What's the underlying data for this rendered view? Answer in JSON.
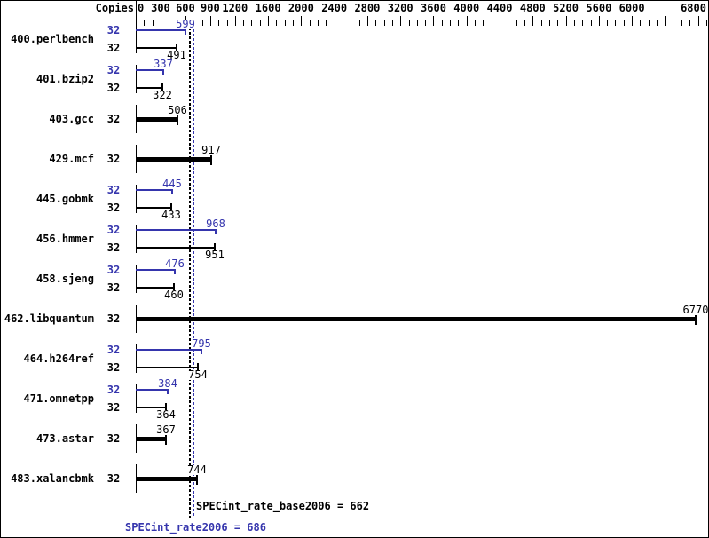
{
  "chart_data": {
    "type": "bar",
    "orientation": "horizontal",
    "copies_header": "Copies",
    "axis": {
      "min": 0,
      "max": 6900,
      "labeled_ticks": [
        0,
        300,
        600,
        900,
        1200,
        1600,
        2000,
        2400,
        2800,
        3200,
        3600,
        4000,
        4400,
        4800,
        5200,
        5600,
        6000,
        6800
      ],
      "unlabeled_major_ticks": [
        6400
      ],
      "minor_tick_step": 100
    },
    "rows": [
      {
        "benchmark": "400.perlbench",
        "bars": [
          {
            "series": "peak",
            "copies": "32",
            "value": 599
          },
          {
            "series": "base",
            "copies": "32",
            "value": 491
          }
        ]
      },
      {
        "benchmark": "401.bzip2",
        "bars": [
          {
            "series": "peak",
            "copies": "32",
            "value": 337
          },
          {
            "series": "base",
            "copies": "32",
            "value": 322
          }
        ]
      },
      {
        "benchmark": "403.gcc",
        "bars": [
          {
            "series": "single",
            "copies": "32",
            "value": 506
          }
        ]
      },
      {
        "benchmark": "429.mcf",
        "bars": [
          {
            "series": "single",
            "copies": "32",
            "value": 917
          }
        ]
      },
      {
        "benchmark": "445.gobmk",
        "bars": [
          {
            "series": "peak",
            "copies": "32",
            "value": 445
          },
          {
            "series": "base",
            "copies": "32",
            "value": 433
          }
        ]
      },
      {
        "benchmark": "456.hmmer",
        "bars": [
          {
            "series": "peak",
            "copies": "32",
            "value": 968
          },
          {
            "series": "base",
            "copies": "32",
            "value": 951
          }
        ]
      },
      {
        "benchmark": "458.sjeng",
        "bars": [
          {
            "series": "peak",
            "copies": "32",
            "value": 476
          },
          {
            "series": "base",
            "copies": "32",
            "value": 460
          }
        ]
      },
      {
        "benchmark": "462.libquantum",
        "bars": [
          {
            "series": "single",
            "copies": "32",
            "value": 6770
          }
        ]
      },
      {
        "benchmark": "464.h264ref",
        "bars": [
          {
            "series": "peak",
            "copies": "32",
            "value": 795
          },
          {
            "series": "base",
            "copies": "32",
            "value": 754
          }
        ]
      },
      {
        "benchmark": "471.omnetpp",
        "bars": [
          {
            "series": "peak",
            "copies": "32",
            "value": 384
          },
          {
            "series": "base",
            "copies": "32",
            "value": 364
          }
        ]
      },
      {
        "benchmark": "473.astar",
        "bars": [
          {
            "series": "single",
            "copies": "32",
            "value": 367
          }
        ]
      },
      {
        "benchmark": "483.xalancbmk",
        "bars": [
          {
            "series": "single",
            "copies": "32",
            "value": 744
          }
        ]
      }
    ],
    "reference_lines": [
      {
        "name": "SPECint_rate_base2006",
        "value": 662,
        "series": "base"
      },
      {
        "name": "SPECint_rate2006",
        "value": 686,
        "series": "peak"
      }
    ],
    "legend_position": "none",
    "grid": false
  },
  "summary": {
    "base_text": "SPECint_rate_base2006 = 662",
    "peak_text": "SPECint_rate2006 = 686"
  },
  "colors": {
    "base": "#000000",
    "peak": "#3535ad",
    "background": "#ffffff",
    "border": "#000000"
  }
}
